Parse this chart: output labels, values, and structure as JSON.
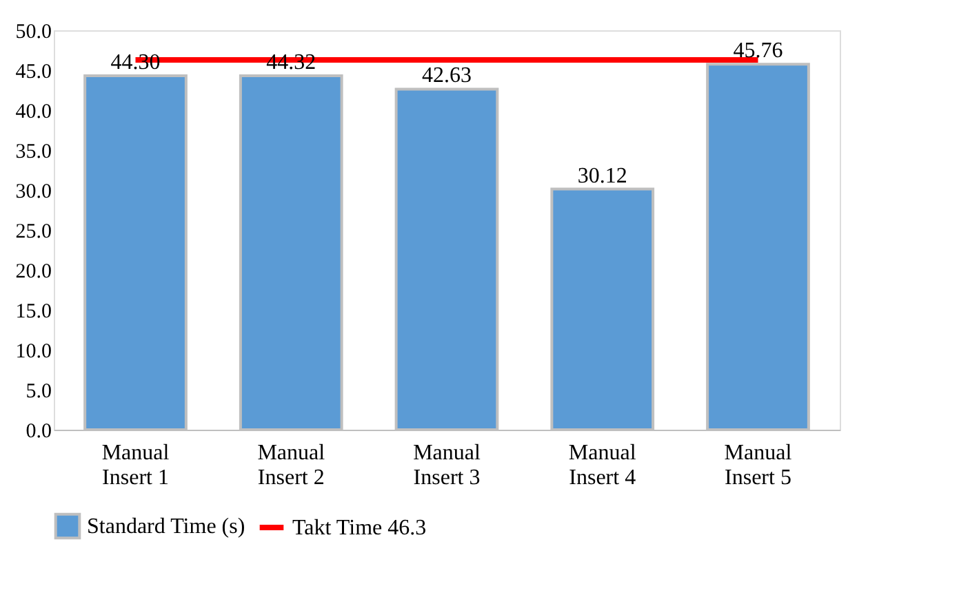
{
  "chart_data": {
    "type": "bar",
    "categories": [
      "Manual Insert 1",
      "Manual Insert 2",
      "Manual Insert 3",
      "Manual Insert 4",
      "Manual Insert 5"
    ],
    "series": [
      {
        "name": "Standard Time (s)",
        "color": "#5b9bd5",
        "values": [
          44.3,
          44.32,
          42.63,
          30.12,
          45.76
        ],
        "value_labels": [
          "44.30",
          "44.32",
          "42.63",
          "30.12",
          "45.76"
        ]
      },
      {
        "name": "Takt Time 46.3",
        "type": "line",
        "color": "#ff0000",
        "values": [
          46.3,
          46.3,
          46.3,
          46.3,
          46.3
        ]
      }
    ],
    "ylim": [
      0,
      50
    ],
    "yticks": [
      {
        "value": 0,
        "label": "0.0"
      },
      {
        "value": 5,
        "label": "5.0"
      },
      {
        "value": 10,
        "label": "10.0"
      },
      {
        "value": 15,
        "label": "15.0"
      },
      {
        "value": 20,
        "label": "20.0"
      },
      {
        "value": 25,
        "label": "25.0"
      },
      {
        "value": 30,
        "label": "30.0"
      },
      {
        "value": 35,
        "label": "35.0"
      },
      {
        "value": 40,
        "label": "40.0"
      },
      {
        "value": 45,
        "label": "45.0"
      },
      {
        "value": 50,
        "label": "50.0"
      }
    ],
    "grid": false,
    "legend": "bottom"
  }
}
